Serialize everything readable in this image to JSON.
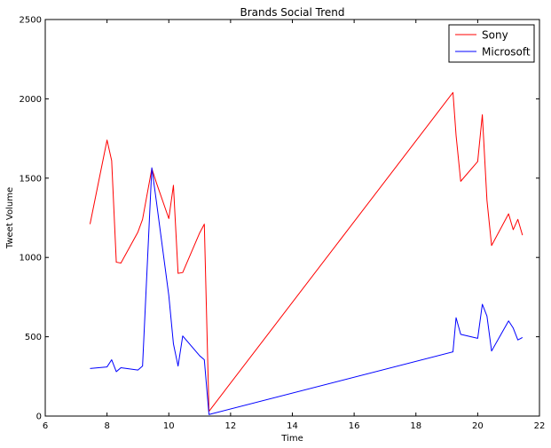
{
  "chart_data": {
    "type": "line",
    "title": "Brands Social Trend",
    "xlabel": "Time",
    "ylabel": "Tweet Volume",
    "xlim": [
      6,
      22
    ],
    "ylim": [
      0,
      2500
    ],
    "xticks": [
      6,
      8,
      10,
      12,
      14,
      16,
      18,
      20,
      22
    ],
    "yticks": [
      0,
      500,
      1000,
      1500,
      2000,
      2500
    ],
    "grid": false,
    "legend_position": "top-right",
    "series": [
      {
        "name": "Sony",
        "color": "#ff0000",
        "x": [
          7.45,
          8.0,
          8.15,
          8.3,
          8.45,
          9.0,
          9.15,
          9.45,
          9.6,
          10.0,
          10.15,
          10.3,
          10.45,
          11.0,
          11.15,
          11.3,
          19.2,
          19.3,
          19.45,
          20.0,
          20.15,
          20.3,
          20.45,
          21.0,
          21.15,
          21.3,
          21.45
        ],
        "y": [
          1210,
          1740,
          1610,
          970,
          965,
          1160,
          1240,
          1560,
          1470,
          1245,
          1455,
          900,
          905,
          1155,
          1210,
          30,
          2040,
          1770,
          1480,
          1605,
          1900,
          1360,
          1075,
          1275,
          1175,
          1240,
          1140
        ]
      },
      {
        "name": "Microsoft",
        "color": "#0000ff",
        "x": [
          7.45,
          8.0,
          8.15,
          8.3,
          8.45,
          9.0,
          9.15,
          9.45,
          9.6,
          10.0,
          10.15,
          10.3,
          10.45,
          11.0,
          11.15,
          11.3,
          19.2,
          19.3,
          19.45,
          20.0,
          20.15,
          20.3,
          20.45,
          21.0,
          21.15,
          21.3,
          21.45
        ],
        "y": [
          300,
          310,
          355,
          280,
          305,
          290,
          315,
          1565,
          1350,
          760,
          455,
          315,
          505,
          380,
          355,
          10,
          405,
          620,
          515,
          490,
          705,
          630,
          410,
          600,
          555,
          480,
          495
        ]
      }
    ]
  }
}
